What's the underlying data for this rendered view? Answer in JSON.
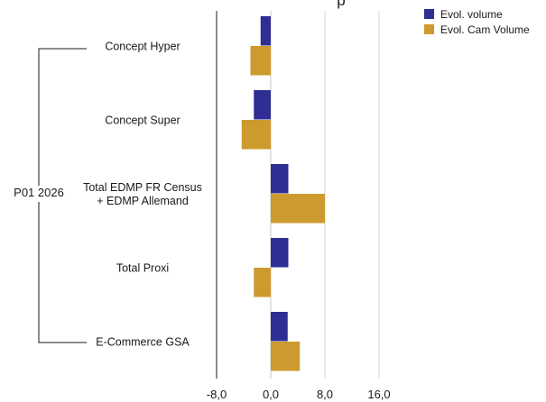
{
  "chart_data": {
    "type": "bar",
    "orientation": "horizontal",
    "title_fragment": "p",
    "group_label": "P01 2026",
    "categories": [
      [
        "Concept Hyper"
      ],
      [
        "Concept Super"
      ],
      [
        "Total EDMP FR Census",
        "+ EDMP Allemand"
      ],
      [
        "Total Proxi"
      ],
      [
        "E-Commerce GSA"
      ]
    ],
    "series": [
      {
        "name": "Evol. volume",
        "color": "#2e2e94",
        "values": [
          -1.5,
          -2.5,
          2.6,
          2.6,
          2.5
        ]
      },
      {
        "name": "Evol. Cam Volume",
        "color": "#cc9a2e",
        "values": [
          -3.0,
          -4.3,
          8.0,
          -2.5,
          4.3
        ]
      }
    ],
    "xlim": [
      -8,
      16
    ],
    "xticks": [
      -8,
      0,
      8,
      16
    ],
    "xtick_labels": [
      "-8,0",
      "0,0",
      "8,0",
      "16,0"
    ],
    "grid": "vertical",
    "legend_position": "top-right"
  }
}
